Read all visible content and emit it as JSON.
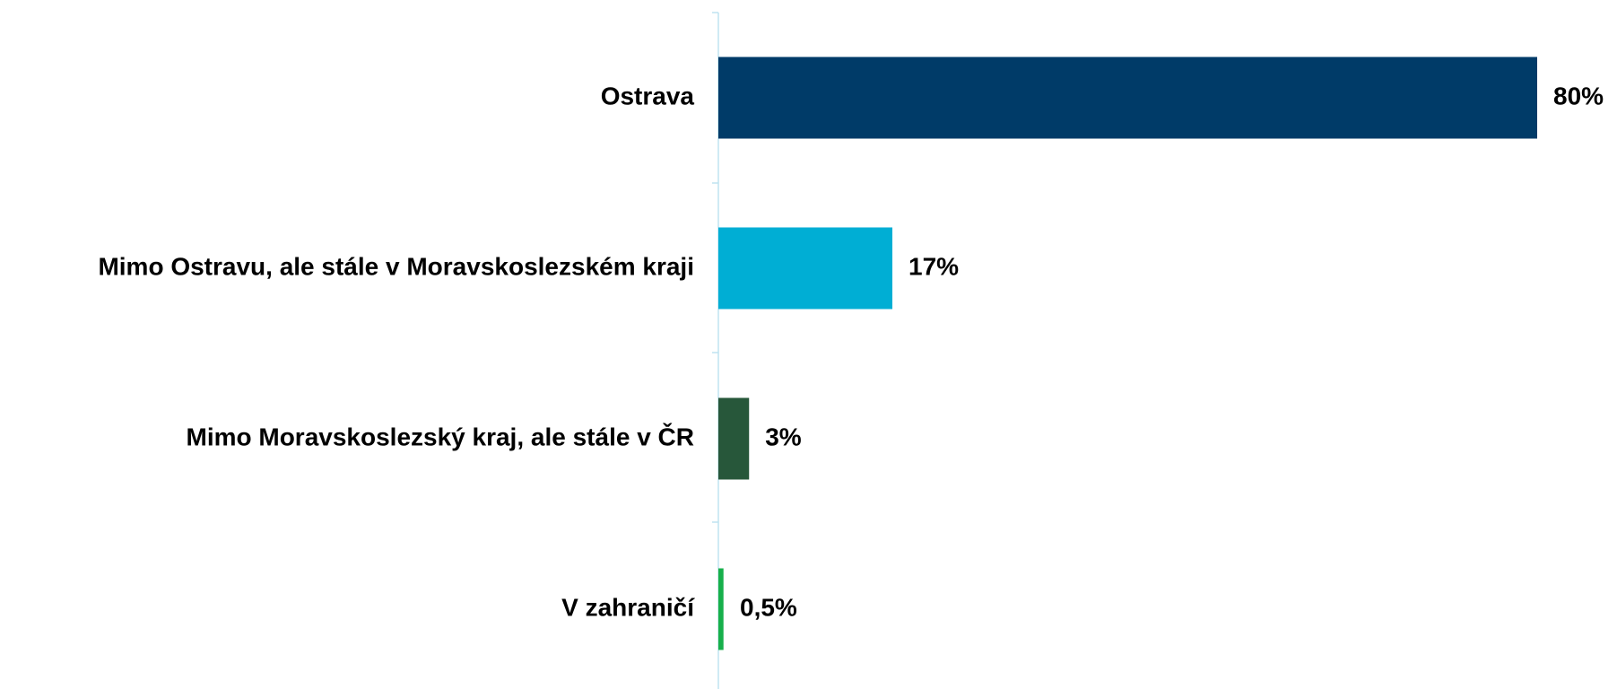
{
  "chart_data": {
    "type": "bar",
    "orientation": "horizontal",
    "categories": [
      "Ostrava",
      "Mimo Ostravu, ale stále v Moravskoslezském kraji",
      "Mimo Moravskoslezský kraj, ale stále v ČR",
      "V zahraničí"
    ],
    "values": [
      80,
      17,
      3,
      0.5
    ],
    "value_labels": [
      "80%",
      "17%",
      "3%",
      "0,5%"
    ],
    "colors": [
      "#003b68",
      "#00aed4",
      "#27573a",
      "#17b04b"
    ],
    "xlim": [
      0,
      80
    ]
  }
}
